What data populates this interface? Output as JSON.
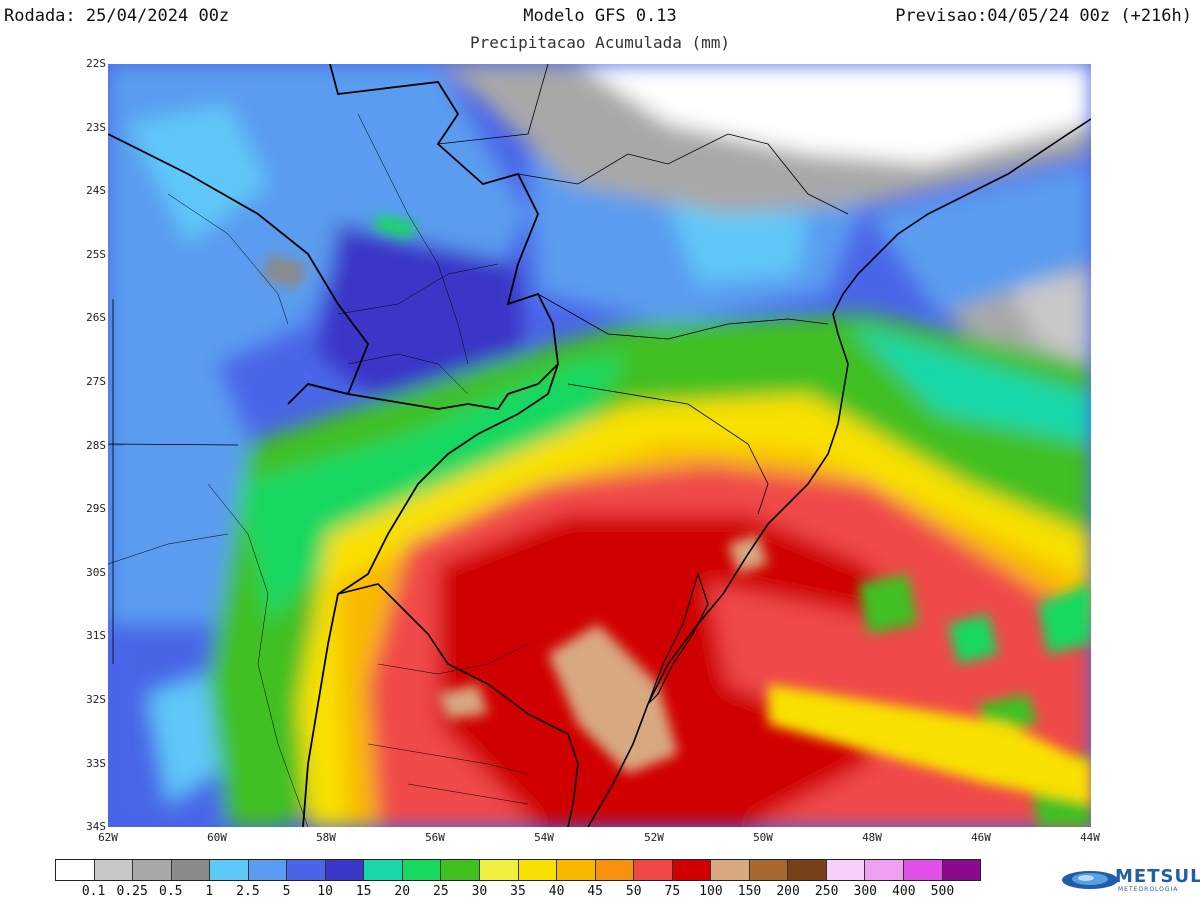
{
  "header": {
    "left": "Rodada: 25/04/2024 00z",
    "center": "Modelo GFS 0.13",
    "right": "Previsao:04/05/24 00z (+216h)",
    "subtitle": "Precipitacao Acumulada (mm)"
  },
  "map": {
    "lat_labels": [
      "22S",
      "23S",
      "24S",
      "25S",
      "26S",
      "27S",
      "28S",
      "29S",
      "30S",
      "31S",
      "32S",
      "33S",
      "34S"
    ],
    "lon_labels": [
      "62W",
      "60W",
      "58W",
      "56W",
      "54W",
      "52W",
      "50W",
      "48W",
      "46W",
      "44W"
    ],
    "lat_range": [
      -22,
      -34
    ],
    "lon_range": [
      -62,
      -44
    ]
  },
  "legend": {
    "colors": [
      "#ffffff",
      "#c8c8c8",
      "#a8a8a8",
      "#8a8a8a",
      "#5ec8f8",
      "#5a9cf0",
      "#4a66e8",
      "#3a36c8",
      "#18d8a8",
      "#18d860",
      "#40c020",
      "#f0f040",
      "#f8e000",
      "#f8b800",
      "#f89010",
      "#f04848",
      "#d00000",
      "#d8a880",
      "#a86830",
      "#784018",
      "#f8d0f8",
      "#f0a0f0",
      "#e050e8",
      "#8a0a90"
    ],
    "labels": [
      "0.1",
      "0.25",
      "0.5",
      "1",
      "2.5",
      "5",
      "10",
      "15",
      "20",
      "25",
      "30",
      "35",
      "40",
      "45",
      "50",
      "75",
      "100",
      "150",
      "200",
      "250",
      "300",
      "400",
      "500"
    ]
  },
  "brand": {
    "name": "METSUL",
    "tagline": "METEOROLOGIA",
    "color": "#1f5ea8"
  }
}
